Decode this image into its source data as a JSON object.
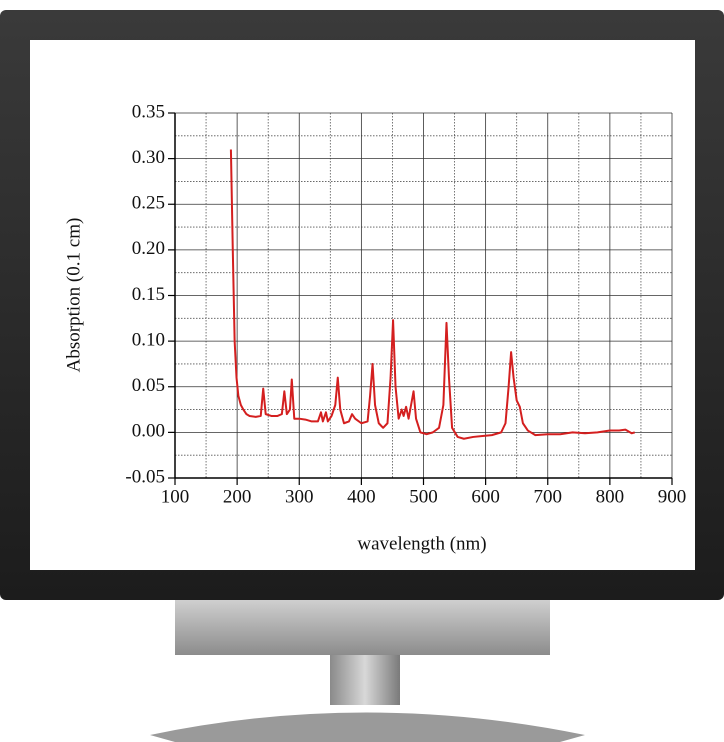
{
  "chart_data": {
    "type": "line",
    "ylabel": "Absorption (0.1 cm)",
    "xlabel": "wavelength (nm)",
    "xlim": [
      100,
      900
    ],
    "xticks": [
      100,
      200,
      300,
      400,
      500,
      600,
      700,
      800,
      900
    ],
    "ylim": [
      -0.05,
      0.35
    ],
    "yticks": [
      -0.05,
      {
        "value": 0,
        "label": "0.00"
      },
      0.05,
      {
        "value": 0.1,
        "label": "0.10"
      },
      0.15,
      {
        "value": 0.2,
        "label": "0.20"
      },
      0.25,
      {
        "value": 0.3,
        "label": "0.30"
      },
      0.35
    ],
    "minor_xticks": [
      150,
      250,
      350,
      450,
      550,
      650,
      750,
      850
    ],
    "minor_yticks": [
      -0.025,
      0.025,
      0.075,
      0.125,
      0.175,
      0.225,
      0.275,
      0.325
    ],
    "grid": true,
    "color": "#d41f1f",
    "x": [
      190,
      193,
      196,
      199,
      202,
      206,
      210,
      215,
      220,
      230,
      238,
      242,
      246,
      255,
      265,
      272,
      276,
      280,
      285,
      288,
      292,
      300,
      310,
      320,
      330,
      335,
      338,
      343,
      346,
      352,
      358,
      362,
      366,
      372,
      380,
      385,
      390,
      400,
      410,
      414,
      418,
      422,
      428,
      435,
      442,
      447,
      451,
      455,
      460,
      465,
      468,
      472,
      476,
      480,
      484,
      488,
      495,
      505,
      515,
      525,
      532,
      537,
      541,
      546,
      555,
      565,
      580,
      595,
      610,
      625,
      632,
      637,
      641,
      645,
      650,
      655,
      660,
      668,
      680,
      700,
      720,
      740,
      760,
      780,
      800,
      815,
      825,
      835,
      840
    ],
    "values": [
      0.31,
      0.2,
      0.1,
      0.06,
      0.04,
      0.03,
      0.025,
      0.02,
      0.018,
      0.017,
      0.018,
      0.048,
      0.02,
      0.018,
      0.018,
      0.02,
      0.045,
      0.02,
      0.025,
      0.058,
      0.015,
      0.015,
      0.014,
      0.012,
      0.012,
      0.022,
      0.012,
      0.022,
      0.012,
      0.018,
      0.03,
      0.06,
      0.025,
      0.01,
      0.012,
      0.02,
      0.015,
      0.01,
      0.012,
      0.04,
      0.075,
      0.03,
      0.01,
      0.005,
      0.01,
      0.06,
      0.123,
      0.05,
      0.015,
      0.025,
      0.018,
      0.028,
      0.015,
      0.03,
      0.045,
      0.015,
      0.0,
      -0.002,
      0.0,
      0.005,
      0.03,
      0.12,
      0.06,
      0.005,
      -0.005,
      -0.007,
      -0.005,
      -0.004,
      -0.003,
      0.0,
      0.01,
      0.05,
      0.088,
      0.06,
      0.035,
      0.028,
      0.01,
      0.002,
      -0.003,
      -0.002,
      -0.002,
      0.0,
      -0.001,
      0.0,
      0.002,
      0.002,
      0.003,
      -0.001,
      0.0
    ]
  }
}
